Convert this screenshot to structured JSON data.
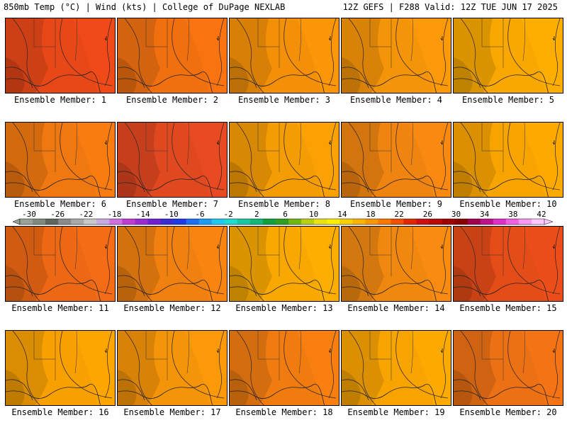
{
  "header": {
    "left": "850mb Temp (°C) | Wind (kts) | College of DuPage NEXLAB",
    "right": "12Z GEFS | F288 Valid: 12Z TUE JUN 17 2025"
  },
  "colorbar": {
    "labels": [
      "-30",
      "-26",
      "-22",
      "-18",
      "-14",
      "-10",
      "-6",
      "-2",
      "2",
      "6",
      "10",
      "14",
      "18",
      "22",
      "26",
      "30",
      "34",
      "38",
      "42"
    ],
    "colors": [
      "#9aa29a",
      "#7e8a7e",
      "#5e665e",
      "#8a8a8a",
      "#a9a9a9",
      "#c8c8c8",
      "#c8a8e0",
      "#d070e0",
      "#c03cd0",
      "#9c2ad0",
      "#7020d0",
      "#3a2cd0",
      "#1e3ae8",
      "#1e6ef0",
      "#1e9cf0",
      "#1ec8f0",
      "#1edcd0",
      "#18c8a0",
      "#14b878",
      "#10a040",
      "#30a020",
      "#70b810",
      "#b8d010",
      "#e8e410",
      "#f8f000",
      "#f8d000",
      "#f8b400",
      "#f89800",
      "#f87800",
      "#f05000",
      "#e02800",
      "#d01010",
      "#b80808",
      "#a00000",
      "#880000",
      "#a00050",
      "#c0108c",
      "#e030c8",
      "#f060e0",
      "#f898f0",
      "#ffc8ff"
    ]
  },
  "panels": [
    {
      "label": "Ensemble Member: 1",
      "color": "#e84818"
    },
    {
      "label": "Ensemble Member: 2",
      "color": "#f07010"
    },
    {
      "label": "Ensemble Member: 3",
      "color": "#f49008"
    },
    {
      "label": "Ensemble Member: 4",
      "color": "#f49408"
    },
    {
      "label": "Ensemble Member: 5",
      "color": "#f8a800"
    },
    {
      "label": "Ensemble Member: 6",
      "color": "#f07810"
    },
    {
      "label": "Ensemble Member: 7",
      "color": "#e04820"
    },
    {
      "label": "Ensemble Member: 8",
      "color": "#f49c04"
    },
    {
      "label": "Ensemble Member: 9",
      "color": "#f08410"
    },
    {
      "label": "Ensemble Member: 10",
      "color": "#f8a400"
    },
    {
      "label": "Ensemble Member: 11",
      "color": "#ec6814"
    },
    {
      "label": "Ensemble Member: 12",
      "color": "#f08010"
    },
    {
      "label": "Ensemble Member: 13",
      "color": "#f8a800"
    },
    {
      "label": "Ensemble Member: 14",
      "color": "#f08810"
    },
    {
      "label": "Ensemble Member: 15",
      "color": "#e44c18"
    },
    {
      "label": "Ensemble Member: 16",
      "color": "#f8a000"
    },
    {
      "label": "Ensemble Member: 17",
      "color": "#f49408"
    },
    {
      "label": "Ensemble Member: 18",
      "color": "#f07c10"
    },
    {
      "label": "Ensemble Member: 19",
      "color": "#f8a400"
    },
    {
      "label": "Ensemble Member: 20",
      "color": "#ec7014"
    }
  ]
}
